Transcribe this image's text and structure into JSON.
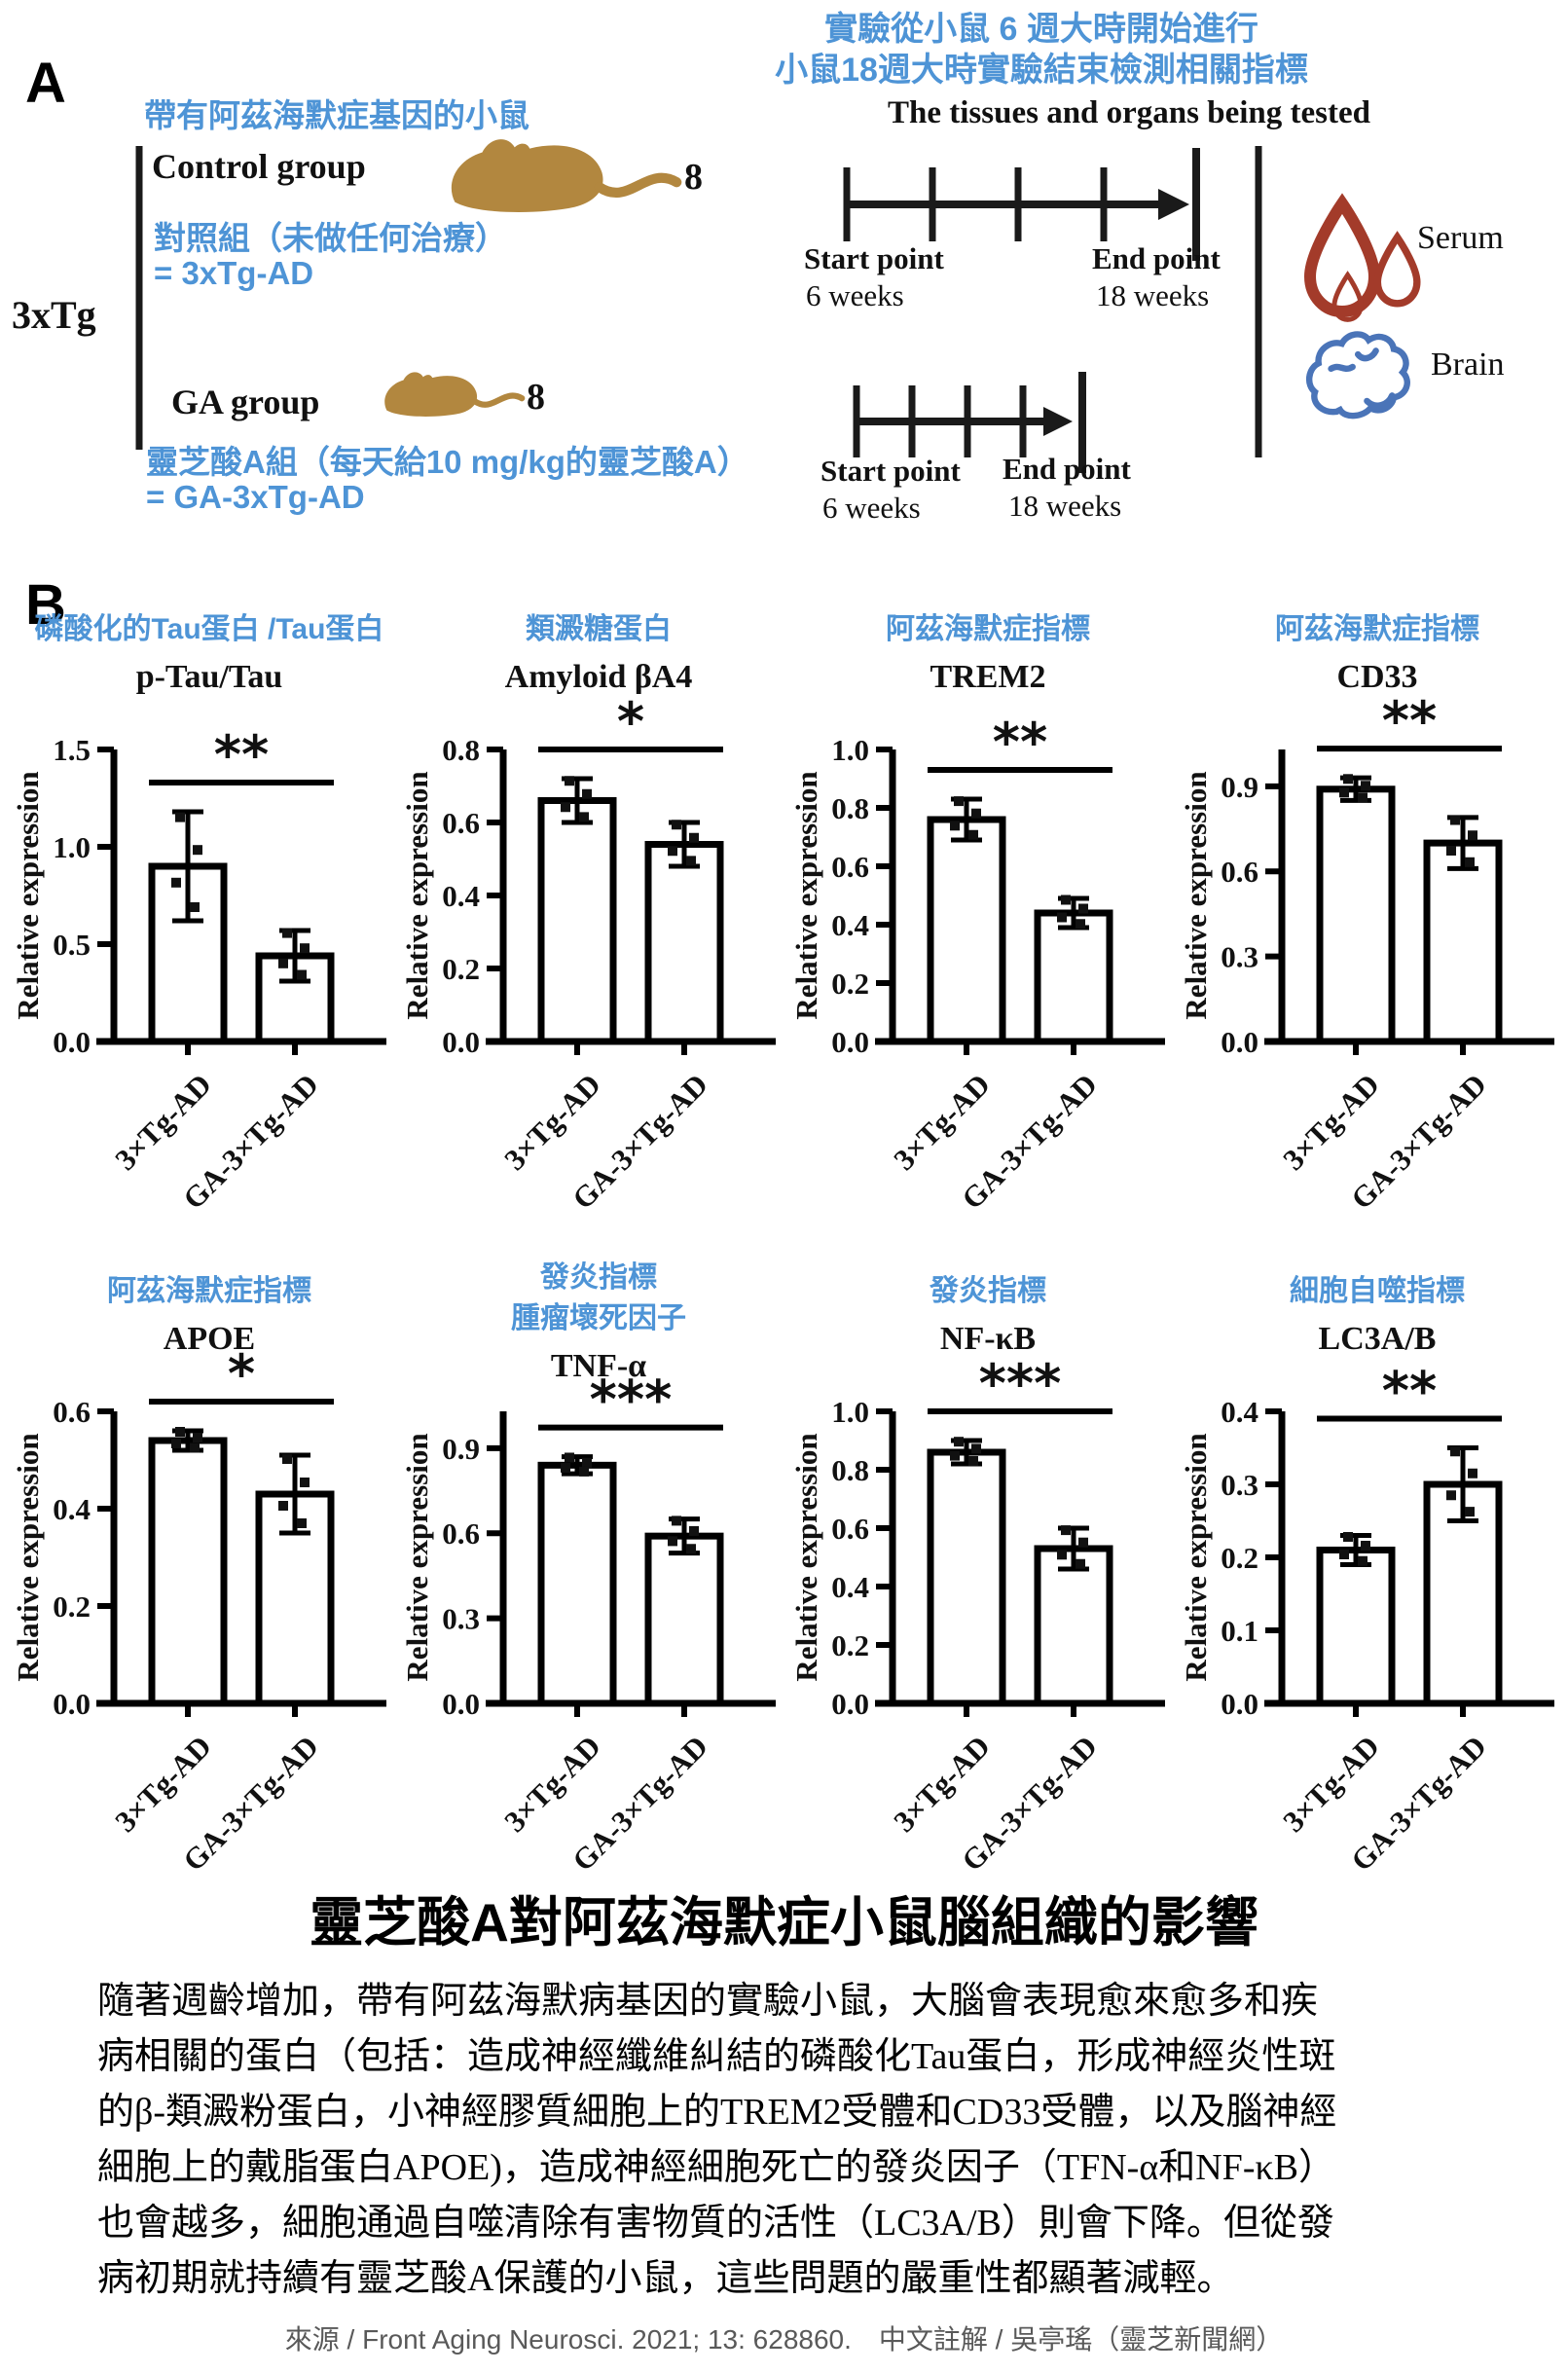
{
  "colors": {
    "annotation_blue": "#4e94d6",
    "mouse_brown": "#b2873f",
    "serum_red": "#a33b2a",
    "brain_blue": "#4a74b8",
    "bar_fill": "#ffffff",
    "bar_stroke": "#000000"
  },
  "panel_a": {
    "label": "A",
    "header_left": "帶有阿茲海默症基因的小鼠",
    "group_bracket": "3xTg",
    "control": {
      "name": "Control group",
      "count": "8",
      "note1": "對照組（未做任何治療）",
      "note2": "= 3xTg-AD"
    },
    "ga": {
      "name": "GA group",
      "count": "8",
      "note1": "靈芝酸A組（每天給10 mg/kg的靈芝酸A）",
      "note2": "= GA-3xTg-AD"
    },
    "header_right1": "實驗從小鼠 6 週大時開始進行",
    "header_right2": "小鼠18週大時實驗結束檢測相關指標",
    "tissues_title": "The tissues and organs being tested",
    "timeline": {
      "start_label": "Start point",
      "start_sub": "6 weeks",
      "end_label": "End point",
      "end_sub": "18 weeks"
    },
    "samples": [
      {
        "icon": "serum-drops-icon",
        "label": "Serum"
      },
      {
        "icon": "brain-icon",
        "label": "Brain"
      }
    ]
  },
  "panel_b": {
    "label": "B",
    "ylabel": "Relative expression",
    "categories": [
      "3×Tg-AD",
      "GA-3×Tg-AD"
    ]
  },
  "chart_data": [
    {
      "type": "bar",
      "title": "p-Tau/Tau",
      "annotation": [
        "磷酸化的Tau蛋白 /Tau蛋白"
      ],
      "categories": [
        "3×Tg-AD",
        "GA-3×Tg-AD"
      ],
      "values": [
        0.9,
        0.44
      ],
      "errors": [
        0.28,
        0.13
      ],
      "sig": "**",
      "yticks": [
        0,
        0.5,
        1.0,
        1.5
      ],
      "ylim": [
        0,
        1.5
      ],
      "ylabel": "Relative expression"
    },
    {
      "type": "bar",
      "title": "Amyloid βA4",
      "annotation": [
        "類澱糖蛋白"
      ],
      "categories": [
        "3×Tg-AD",
        "GA-3×Tg-AD"
      ],
      "values": [
        0.66,
        0.54
      ],
      "errors": [
        0.06,
        0.06
      ],
      "sig": "*",
      "yticks": [
        0,
        0.2,
        0.4,
        0.6,
        0.8
      ],
      "ylim": [
        0,
        0.8
      ],
      "ylabel": "Relative expression"
    },
    {
      "type": "bar",
      "title": "TREM2",
      "annotation": [
        "阿茲海默症指標"
      ],
      "categories": [
        "3×Tg-AD",
        "GA-3×Tg-AD"
      ],
      "values": [
        0.76,
        0.44
      ],
      "errors": [
        0.07,
        0.05
      ],
      "sig": "**",
      "yticks": [
        0,
        0.2,
        0.4,
        0.6,
        0.8,
        1.0
      ],
      "ylim": [
        0,
        1.0
      ],
      "ylabel": "Relative expression"
    },
    {
      "type": "bar",
      "title": "CD33",
      "annotation": [
        "阿茲海默症指標"
      ],
      "categories": [
        "3×Tg-AD",
        "GA-3×Tg-AD"
      ],
      "values": [
        0.89,
        0.7
      ],
      "errors": [
        0.04,
        0.09
      ],
      "sig": "**",
      "yticks": [
        0,
        0.3,
        0.6,
        0.9
      ],
      "ylim": [
        0,
        1.03
      ],
      "ylabel": "Relative expression"
    },
    {
      "type": "bar",
      "title": "APOE",
      "annotation": [
        "阿茲海默症指標"
      ],
      "categories": [
        "3×Tg-AD",
        "GA-3×Tg-AD"
      ],
      "values": [
        0.54,
        0.43
      ],
      "errors": [
        0.02,
        0.08
      ],
      "sig": "*",
      "yticks": [
        0,
        0.2,
        0.4,
        0.6
      ],
      "ylim": [
        0,
        0.6
      ],
      "ylabel": "Relative expression"
    },
    {
      "type": "bar",
      "title": "TNF-α",
      "annotation": [
        "發炎指標",
        "腫瘤壞死因子"
      ],
      "categories": [
        "3×Tg-AD",
        "GA-3×Tg-AD"
      ],
      "values": [
        0.84,
        0.59
      ],
      "errors": [
        0.03,
        0.06
      ],
      "sig": "***",
      "yticks": [
        0,
        0.3,
        0.6,
        0.9
      ],
      "ylim": [
        0,
        1.03
      ],
      "ylabel": "Relative expression"
    },
    {
      "type": "bar",
      "title": "NF-κB",
      "annotation": [
        "發炎指標"
      ],
      "categories": [
        "3×Tg-AD",
        "GA-3×Tg-AD"
      ],
      "values": [
        0.86,
        0.53
      ],
      "errors": [
        0.04,
        0.07
      ],
      "sig": "***",
      "yticks": [
        0,
        0.2,
        0.4,
        0.6,
        0.8,
        1.0
      ],
      "ylim": [
        0,
        1.0
      ],
      "ylabel": "Relative expression"
    },
    {
      "type": "bar",
      "title": "LC3A/B",
      "annotation": [
        "細胞自噬指標"
      ],
      "categories": [
        "3×Tg-AD",
        "GA-3×Tg-AD"
      ],
      "values": [
        0.21,
        0.3
      ],
      "errors": [
        0.02,
        0.05
      ],
      "sig": "**",
      "yticks": [
        0,
        0.1,
        0.2,
        0.3,
        0.4
      ],
      "ylim": [
        0,
        0.4
      ],
      "ylabel": "Relative expression"
    }
  ],
  "footer": {
    "title": "靈芝酸A對阿茲海默症小鼠腦組織的影響",
    "paragraph": [
      "隨著週齡增加，帶有阿茲海默病基因的實驗小鼠，大腦會表現愈來愈多和疾",
      "病相關的蛋白（包括：造成神經纖維糾結的磷酸化Tau蛋白，形成神經炎性斑",
      "的β-類澱粉蛋白，小神經膠質細胞上的TREM2受體和CD33受體，以及腦神經",
      "細胞上的戴脂蛋白APOE)，造成神經細胞死亡的發炎因子（TFN-α和NF-κB）",
      "也會越多，細胞通過自噬清除有害物質的活性（LC3A/B）則會下降。但從發",
      "病初期就持續有靈芝酸A保護的小鼠，這些問題的嚴重性都顯著減輕。"
    ],
    "source": "來源 / Front Aging Neurosci. 2021; 13: 628860.　中文註解 / 吳亭瑤（靈芝新聞網）"
  }
}
